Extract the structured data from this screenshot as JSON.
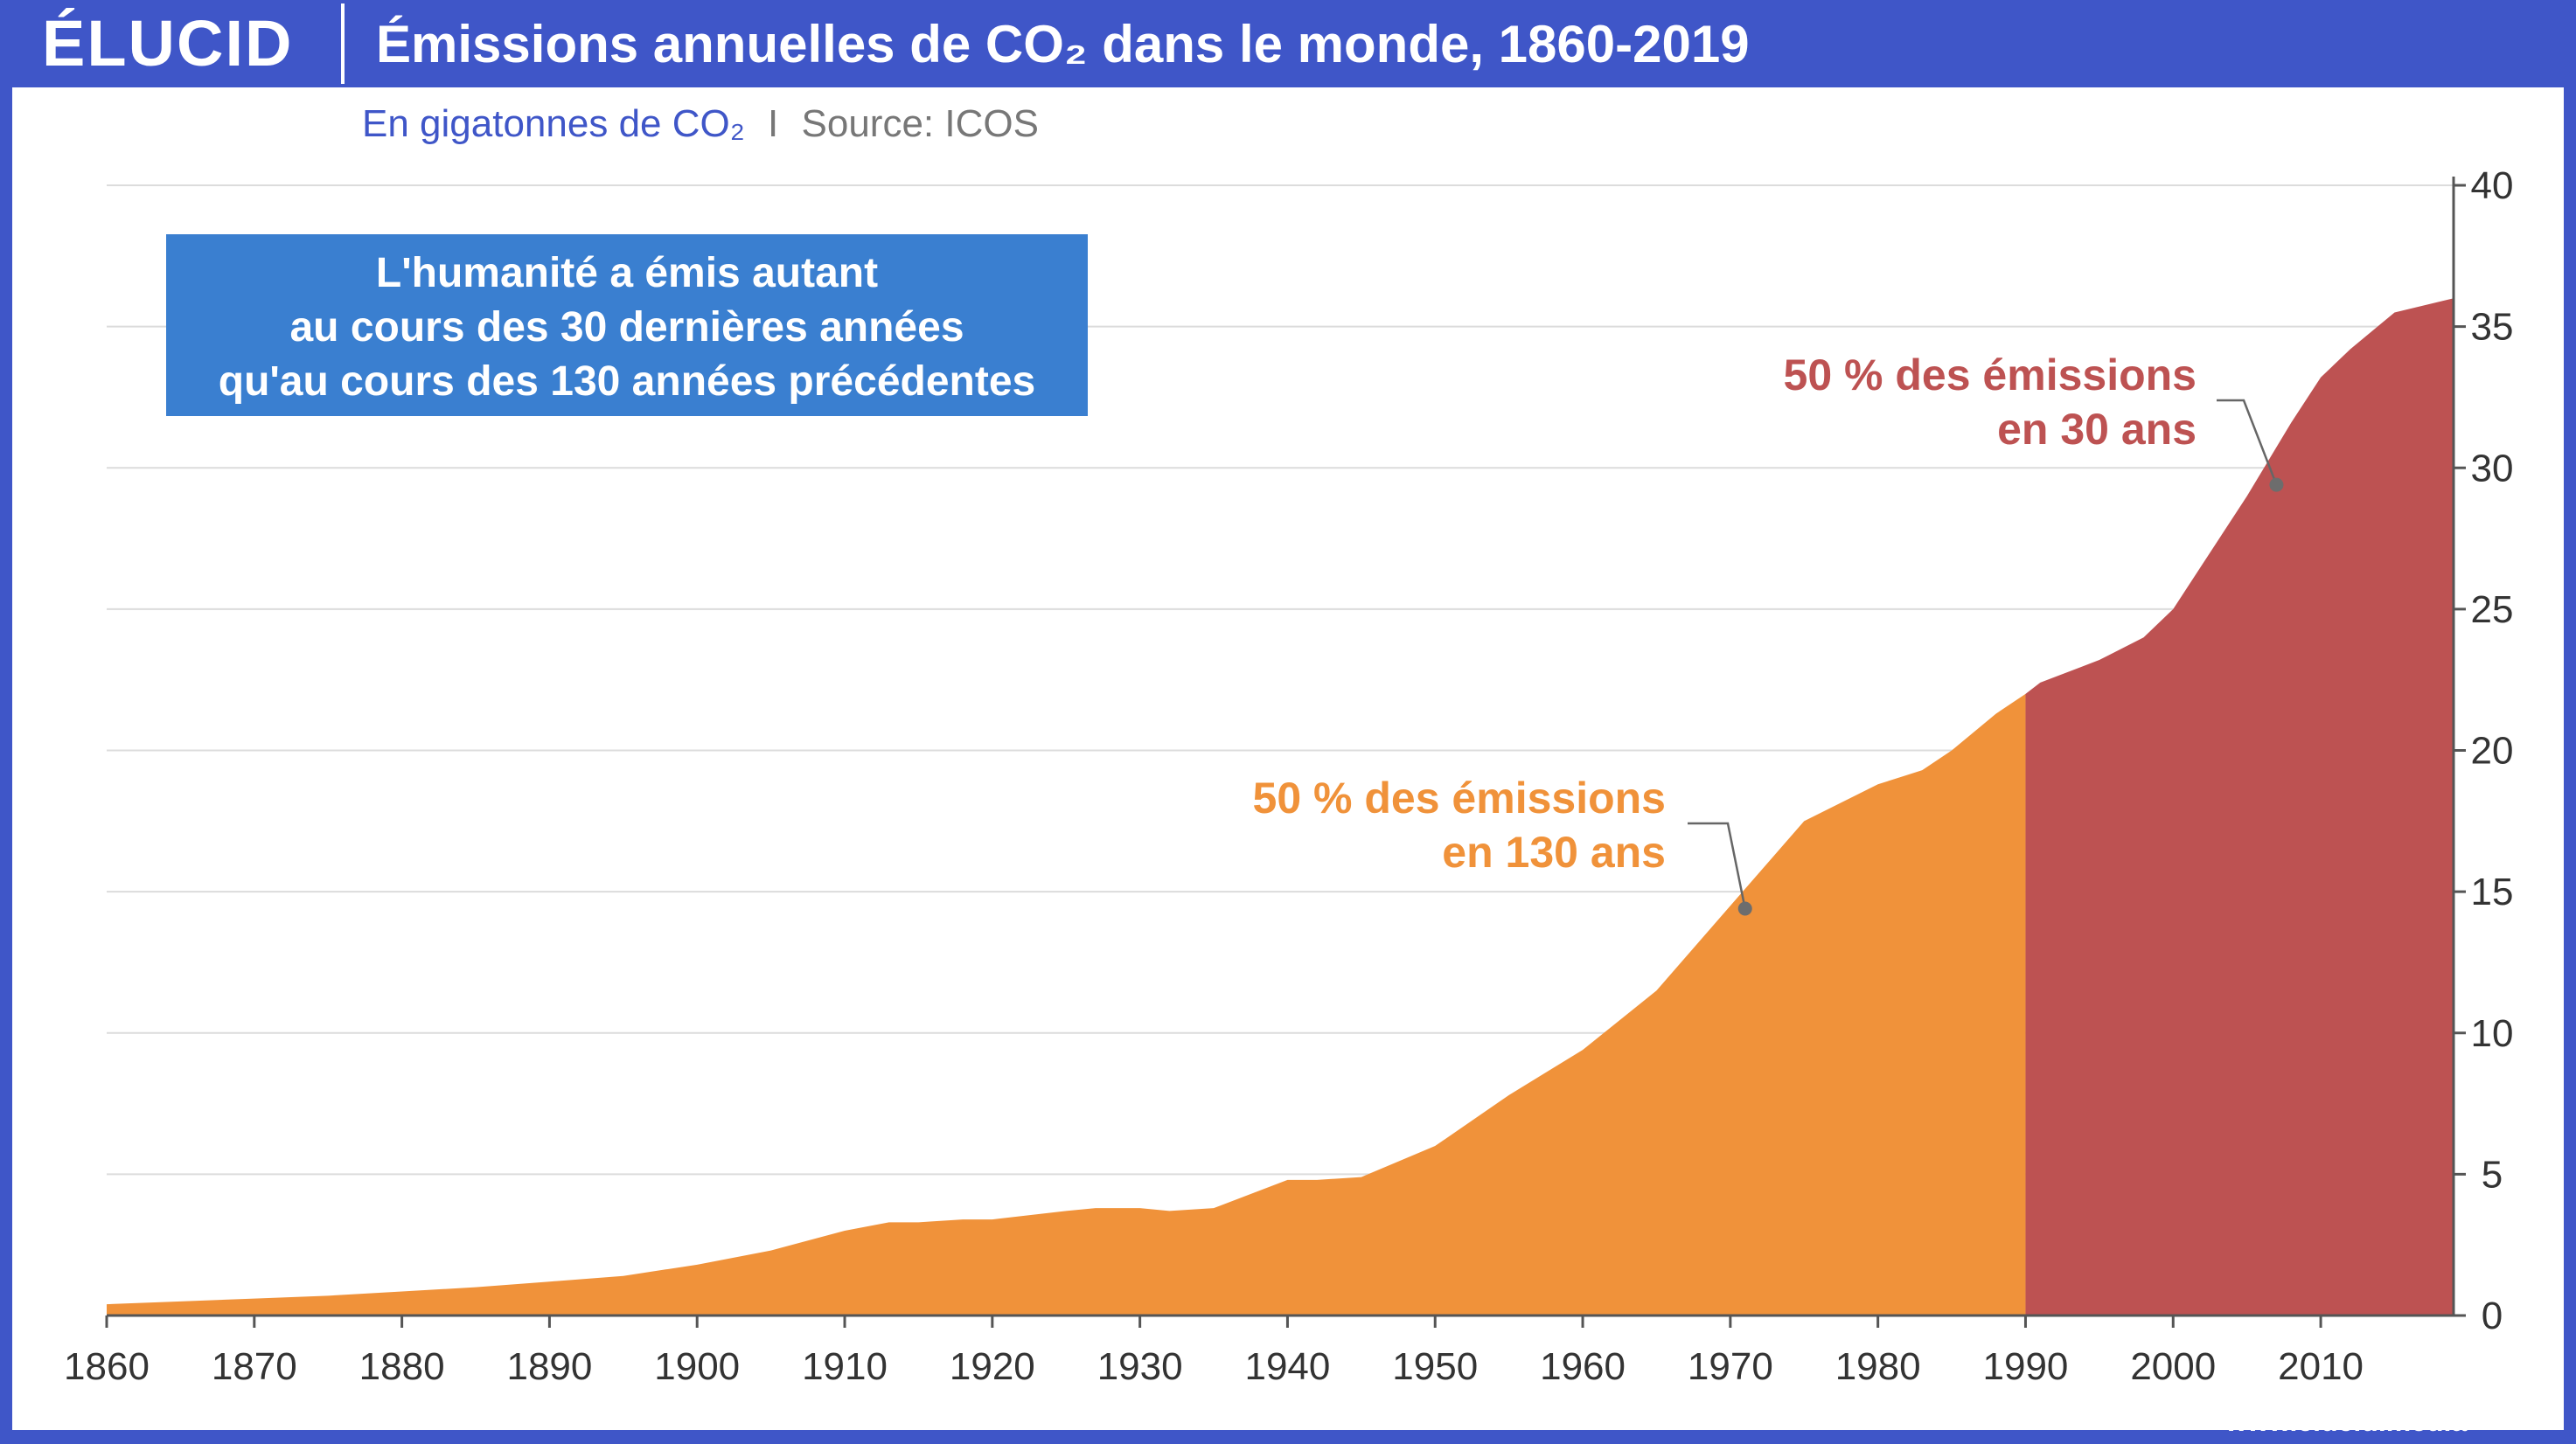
{
  "brand": {
    "logo": "ÉLUCID",
    "website": "www.elucid.media"
  },
  "header": {
    "title": "Émissions annuelles de CO₂ dans le monde, 1860-2019"
  },
  "subtitle": {
    "unit": "En gigatonnes de CO₂",
    "separator": "I",
    "source": "Source: ICOS"
  },
  "callout": {
    "lines": [
      "L'humanité a émis autant",
      "au cours des 30 dernières années",
      "qu'au cours des 130 années précédentes"
    ]
  },
  "colors": {
    "header": "#3f56c8",
    "series_before_1990": "#f0923a",
    "series_after_1990": "#bd5252",
    "callout_bg": "#3a7fd0",
    "annotation_orange": "#f0923a",
    "annotation_red": "#bd5252"
  },
  "chart_data": {
    "type": "area",
    "title": "Émissions annuelles de CO₂ dans le monde, 1860-2019",
    "subtitle": "En gigatonnes de CO₂",
    "source": "ICOS",
    "xlim": [
      1860,
      2019
    ],
    "ylim": [
      0,
      40
    ],
    "yaxis_position": "right",
    "xticks": [
      1860,
      1870,
      1880,
      1890,
      1900,
      1910,
      1920,
      1930,
      1940,
      1950,
      1960,
      1970,
      1980,
      1990,
      2000,
      2010
    ],
    "yticks": [
      0,
      5,
      10,
      15,
      20,
      25,
      30,
      35,
      40
    ],
    "grid": true,
    "split_year": 1990,
    "x": [
      1860,
      1865,
      1870,
      1875,
      1880,
      1885,
      1890,
      1895,
      1900,
      1905,
      1910,
      1913,
      1915,
      1918,
      1920,
      1925,
      1927,
      1930,
      1932,
      1935,
      1937,
      1940,
      1942,
      1945,
      1950,
      1955,
      1960,
      1965,
      1970,
      1975,
      1980,
      1983,
      1985,
      1988,
      1990,
      1991,
      1995,
      1998,
      2000,
      2002,
      2005,
      2008,
      2010,
      2012,
      2015,
      2019
    ],
    "values": [
      0.4,
      0.5,
      0.6,
      0.7,
      0.85,
      1.0,
      1.2,
      1.4,
      1.8,
      2.3,
      3.0,
      3.3,
      3.3,
      3.4,
      3.4,
      3.7,
      3.8,
      3.8,
      3.7,
      3.8,
      4.2,
      4.8,
      4.8,
      4.9,
      6.0,
      7.8,
      9.4,
      11.5,
      14.5,
      17.5,
      18.8,
      19.3,
      20.0,
      21.3,
      22.0,
      22.4,
      23.2,
      24.0,
      25.0,
      26.6,
      29.0,
      31.6,
      33.2,
      34.2,
      35.5,
      36.0
    ],
    "annotations": [
      {
        "text": [
          "50 % des émissions",
          "en 130 ans"
        ],
        "point": [
          1971,
          14.4
        ],
        "color": "#f0923a"
      },
      {
        "text": [
          "50 % des émissions",
          "en 30 ans"
        ],
        "point": [
          2007,
          29.4
        ],
        "color": "#bd5252"
      }
    ]
  }
}
